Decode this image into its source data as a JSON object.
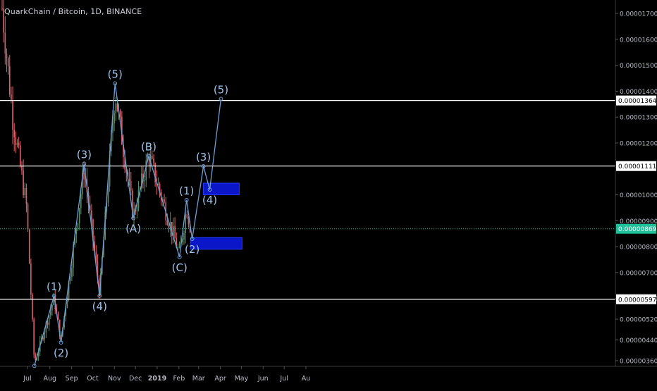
{
  "chart_title": "QuarkChain / Bitcoin, 1D, BINANCE",
  "colors": {
    "background": "#000000",
    "up_candle": "#5f8a68",
    "down_candle": "#e0606a",
    "wave_line": "#6f9fd6",
    "wave_label": "#9fc3ec",
    "target_box": "#0a16c8",
    "level_line": "#ffffff",
    "current_price_line": "#1fbf9a",
    "axis_text": "#b8bcc6"
  },
  "chart_data": {
    "type": "candlestick",
    "title": "QuarkChain / Bitcoin, 1D, BINANCE",
    "x_ticks": [
      "Jul",
      "Aug",
      "Sep",
      "Oct",
      "Nov",
      "Dec",
      "2019",
      "Feb",
      "Mar",
      "Apr",
      "May",
      "Jun",
      "Jul",
      "Au"
    ],
    "y_ticks": [
      "0.00001700",
      "0.00001600",
      "0.00001500",
      "0.00001400",
      "0.00001300",
      "0.00001200",
      "0.00001000",
      "0.00000900",
      "0.00000800",
      "0.00000700",
      "0.00000600",
      "0.00000520",
      "0.00000440",
      "0.00000360"
    ],
    "ylim": [
      3.3e-06,
      1.73e-05
    ],
    "xlim_days": [
      0,
      415
    ],
    "horizontal_levels": [
      {
        "value": 1.364e-05,
        "label": "0.00001364"
      },
      {
        "value": 1.111e-05,
        "label": "0.00001111"
      },
      {
        "value": 5.97e-06,
        "label": "0.00000597"
      }
    ],
    "current_price": {
      "value": 8.69e-06,
      "label": "0.00000869"
    },
    "wave_path": [
      {
        "date": "2018-08-05",
        "price": 3.4e-06
      },
      {
        "date": "2018-09-02",
        "price": 6.1e-06,
        "label": "(1)"
      },
      {
        "date": "2018-09-12",
        "price": 4.3e-06,
        "label": "(2)"
      },
      {
        "date": "2018-10-15",
        "price": 1.12e-05,
        "label": "(3)"
      },
      {
        "date": "2018-11-06",
        "price": 6.1e-06,
        "label": "(4)"
      },
      {
        "date": "2018-11-28",
        "price": 1.43e-05,
        "label": "(5)"
      },
      {
        "date": "2018-12-24",
        "price": 9.1e-06,
        "label": "(A)"
      },
      {
        "date": "2019-01-15",
        "price": 1.15e-05,
        "label": "(B)"
      },
      {
        "date": "2019-02-28",
        "price": 7.6e-06,
        "label": "(C)"
      },
      {
        "date": "2019-03-10",
        "price": 9.8e-06,
        "label": "(1)"
      },
      {
        "date": "2019-03-18",
        "price": 8.3e-06,
        "label": "(2)"
      },
      {
        "date": "2019-04-03",
        "price": 1.11e-05,
        "label": "(3)"
      },
      {
        "date": "2019-04-12",
        "price": 1.02e-05,
        "label": "(4)"
      },
      {
        "date": "2019-04-28",
        "price": 1.37e-05,
        "label": "(5)"
      }
    ],
    "target_zones": [
      {
        "date_from": "2019-03-16",
        "date_to": "2019-05-28",
        "price_low": 7.9e-06,
        "price_high": 8.35e-06
      },
      {
        "date_from": "2019-04-03",
        "date_to": "2019-05-24",
        "price_low": 1e-05,
        "price_high": 1.045e-05
      }
    ],
    "candles_summary": [
      {
        "date": "2018-06-20",
        "price": 1.72e-05
      },
      {
        "date": "2018-07-05",
        "price": 1.3e-05
      },
      {
        "date": "2018-07-25",
        "price": 9.5e-06
      },
      {
        "date": "2018-08-05",
        "price": 3.5e-06
      },
      {
        "date": "2018-09-02",
        "price": 6e-06
      },
      {
        "date": "2018-09-12",
        "price": 4.4e-06
      },
      {
        "date": "2018-10-15",
        "price": 1.1e-05
      },
      {
        "date": "2018-11-06",
        "price": 6.2e-06
      },
      {
        "date": "2018-11-28",
        "price": 1.4e-05
      },
      {
        "date": "2018-12-24",
        "price": 9.2e-06
      },
      {
        "date": "2019-01-15",
        "price": 1.15e-05
      },
      {
        "date": "2019-02-28",
        "price": 7.7e-06
      },
      {
        "date": "2019-03-10",
        "price": 9.5e-06
      },
      {
        "date": "2019-03-16",
        "price": 8.69e-06
      }
    ]
  }
}
